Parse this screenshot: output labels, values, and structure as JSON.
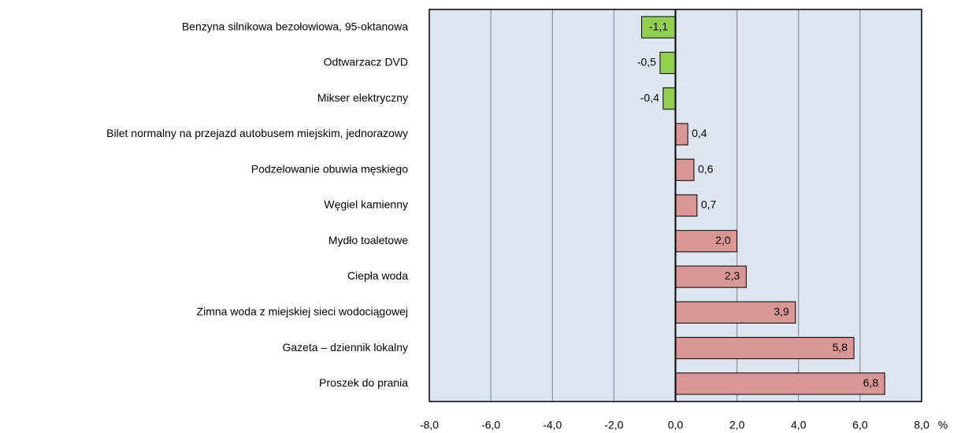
{
  "chart_data": {
    "type": "hbar",
    "categories": [
      "Benzyna silnikowa bezołowiowa, 95-oktanowa",
      "Odtwarzacz DVD",
      "Mikser elektryczny",
      "Bilet normalny na przejazd autobusem miejskim, jednorazowy",
      "Podzelowanie obuwia męskiego",
      "Węgiel kamienny",
      "Mydło toaletowe",
      "Ciepła woda",
      "Zimna woda z miejskiej sieci wodociągowej",
      "Gazeta – dziennik lokalny",
      "Proszek do prania"
    ],
    "values": [
      -1.1,
      -0.5,
      -0.4,
      0.4,
      0.6,
      0.7,
      2.0,
      2.3,
      3.9,
      5.8,
      6.8
    ],
    "value_labels": [
      "-1,1",
      "-0,5",
      "-0,4",
      "0,4",
      "0,6",
      "0,7",
      "2,0",
      "2,3",
      "3,9",
      "5,8",
      "6,8"
    ],
    "negative_color": "#92d050",
    "positive_color": "#d99694",
    "x_label": "%",
    "xlim": [
      -8,
      8
    ],
    "xticks": [
      {
        "value": -8,
        "label": "-8,0"
      },
      {
        "value": -6,
        "label": "-6,0"
      },
      {
        "value": -4,
        "label": "-4,0"
      },
      {
        "value": -2,
        "label": "-2,0"
      },
      {
        "value": 0,
        "label": "0,0"
      },
      {
        "value": 2,
        "label": "2,0"
      },
      {
        "value": 4,
        "label": "4,0"
      },
      {
        "value": 6,
        "label": "6,0"
      },
      {
        "value": 8,
        "label": "8,0"
      }
    ],
    "grid": true
  }
}
